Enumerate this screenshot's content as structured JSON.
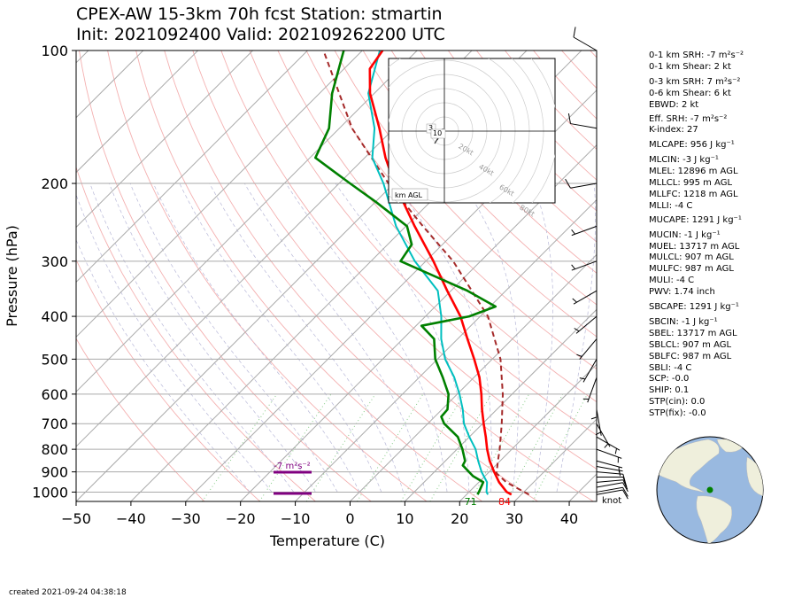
{
  "header": {
    "title_line1": "CPEX-AW 15-3km  70h fcst  Station: stmartin",
    "title_line2": "Init: 2021092400  Valid: 202109262200 UTC"
  },
  "footer": {
    "created": "created 2021-09-24 04:38:18"
  },
  "wind_unit": "knot",
  "indices": [
    "0-1 km SRH: -7 m²s⁻²",
    "0-1 km Shear: 2 kt",
    "0-3 km SRH: 7 m²s⁻²",
    "0-6 km Shear: 6 kt",
    "EBWD: 2 kt",
    "Eff. SRH: -7 m²s⁻²",
    "K-index: 27",
    "MLCAPE: 956 J kg⁻¹",
    "MLCIN: -3 J kg⁻¹",
    "MLEL: 12896 m AGL",
    "MLLCL: 995 m AGL",
    "MLLFC: 1218 m AGL",
    "MLLI: -4 C",
    "MUCAPE: 1291 J kg⁻¹",
    "MUCIN: -1 J kg⁻¹",
    "MUEL: 13717 m AGL",
    "MULCL: 907 m AGL",
    "MULFC: 987 m AGL",
    "MULI: -4 C",
    "PWV: 1.74 inch",
    "SBCAPE: 1291 J kg⁻¹",
    "SBCIN: -1 J kg⁻¹",
    "SBEL: 13717 m AGL",
    "SBLCL: 907 m AGL",
    "SBLFC: 987 m AGL",
    "SBLI: -4 C",
    "SCP: -0.0",
    "SHIP: 0.1",
    "STP(cin): 0.0",
    "STP(fix): -0.0"
  ],
  "hodograph": {
    "ring_labels": [
      "20kt",
      "40kt",
      "60kt",
      "80kt"
    ],
    "height_labels": [
      "3",
      "10"
    ],
    "legend": "km AGL"
  },
  "colors": {
    "temperature": "#ff0000",
    "dewpoint": "#008000",
    "wetbulb": "#00bfbf",
    "parcel": "#a52a2a",
    "srh_marker": "#800080",
    "isobar": "#aaaaaa",
    "dry_adiabat": "#f4b0b0",
    "mixing_ratio": "#88cc88",
    "globe_ocean": "#99b9e0",
    "globe_land": "#efefdc",
    "station": "#008000"
  },
  "chart_data": {
    "type": "line",
    "diagram": "skew-T log-P",
    "xlabel": "Temperature (C)",
    "ylabel": "Pressure (hPa)",
    "xlim": [
      -50,
      45
    ],
    "ylim": [
      1050,
      100
    ],
    "x_ticks": [
      -50,
      -40,
      -30,
      -20,
      -10,
      0,
      10,
      20,
      30,
      40
    ],
    "y_ticks": [
      1000,
      900,
      800,
      700,
      600,
      500,
      400,
      300,
      200,
      100
    ],
    "grid": true,
    "surface_labels": {
      "dewpoint": "71",
      "temperature": "84"
    },
    "srh_markers": [
      {
        "label": "-7 m²s⁻²",
        "pressure": 900
      },
      {
        "label": "",
        "pressure": 1010
      }
    ],
    "series": [
      {
        "key": "temperature",
        "points": [
          [
            1013,
            28.2
          ],
          [
            1000,
            26.9
          ],
          [
            950,
            23.7
          ],
          [
            900,
            20.9
          ],
          [
            850,
            18.1
          ],
          [
            800,
            15.5
          ],
          [
            750,
            13.0
          ],
          [
            700,
            10.2
          ],
          [
            650,
            7.3
          ],
          [
            600,
            4.4
          ],
          [
            550,
            1.0
          ],
          [
            500,
            -3.3
          ],
          [
            450,
            -8.2
          ],
          [
            400,
            -13.6
          ],
          [
            350,
            -20.7
          ],
          [
            300,
            -28.6
          ],
          [
            250,
            -38.4
          ],
          [
            200,
            -49.9
          ],
          [
            175,
            -56.2
          ],
          [
            150,
            -62.7
          ],
          [
            125,
            -70.8
          ],
          [
            110,
            -75.3
          ],
          [
            100,
            -76.3
          ]
        ]
      },
      {
        "key": "dewpoint",
        "points": [
          [
            1013,
            22.0
          ],
          [
            1000,
            21.8
          ],
          [
            950,
            20.8
          ],
          [
            920,
            17.8
          ],
          [
            870,
            14.0
          ],
          [
            850,
            13.6
          ],
          [
            800,
            11.0
          ],
          [
            750,
            7.9
          ],
          [
            700,
            3.0
          ],
          [
            675,
            1.2
          ],
          [
            650,
            1.0
          ],
          [
            600,
            -1.6
          ],
          [
            550,
            -5.7
          ],
          [
            500,
            -10.4
          ],
          [
            450,
            -14.3
          ],
          [
            420,
            -19.0
          ],
          [
            400,
            -12.0
          ],
          [
            380,
            -9.0
          ],
          [
            350,
            -17.0
          ],
          [
            300,
            -34.6
          ],
          [
            275,
            -35.6
          ],
          [
            250,
            -39.8
          ],
          [
            220,
            -50.0
          ],
          [
            200,
            -58.0
          ],
          [
            175,
            -69.0
          ],
          [
            150,
            -71.9
          ],
          [
            125,
            -77.7
          ],
          [
            100,
            -83.4
          ]
        ]
      },
      {
        "key": "wetbulb",
        "points": [
          [
            1013,
            23.9
          ],
          [
            1000,
            23.2
          ],
          [
            950,
            21.5
          ],
          [
            900,
            18.6
          ],
          [
            850,
            16.0
          ],
          [
            800,
            13.4
          ],
          [
            750,
            10.0
          ],
          [
            700,
            6.6
          ],
          [
            650,
            3.8
          ],
          [
            600,
            0.4
          ],
          [
            550,
            -3.6
          ],
          [
            500,
            -8.6
          ],
          [
            450,
            -13.0
          ],
          [
            400,
            -17.1
          ],
          [
            350,
            -22.4
          ],
          [
            300,
            -32.0
          ],
          [
            250,
            -41.8
          ],
          [
            200,
            -51.9
          ],
          [
            175,
            -58.6
          ],
          [
            150,
            -63.6
          ],
          [
            125,
            -71.1
          ],
          [
            100,
            -76.8
          ]
        ]
      },
      {
        "key": "parcel",
        "points": [
          [
            1013,
            31.4
          ],
          [
            950,
            25.0
          ],
          [
            907,
            21.6
          ],
          [
            850,
            19.6
          ],
          [
            800,
            17.8
          ],
          [
            700,
            13.5
          ],
          [
            600,
            8.3
          ],
          [
            500,
            1.5
          ],
          [
            400,
            -8.6
          ],
          [
            300,
            -25.0
          ],
          [
            250,
            -36.9
          ],
          [
            200,
            -51.0
          ],
          [
            150,
            -67.7
          ],
          [
            100,
            -87.1
          ]
        ]
      }
    ],
    "wind_barbs": {
      "pressures": [
        1013,
        1000,
        975,
        950,
        925,
        900,
        875,
        850,
        800,
        750,
        700,
        650,
        600,
        550,
        500,
        450,
        400,
        350,
        300,
        250,
        200,
        150,
        100
      ],
      "speed_kt": [
        12,
        12,
        12,
        10,
        10,
        8,
        6,
        6,
        5,
        5,
        5,
        5,
        6,
        6,
        6,
        5,
        6,
        6,
        5,
        6,
        10,
        12,
        8
      ],
      "direction_deg": [
        80,
        80,
        80,
        85,
        90,
        95,
        100,
        105,
        110,
        120,
        150,
        170,
        180,
        200,
        210,
        220,
        230,
        240,
        250,
        250,
        260,
        280,
        300
      ]
    }
  }
}
